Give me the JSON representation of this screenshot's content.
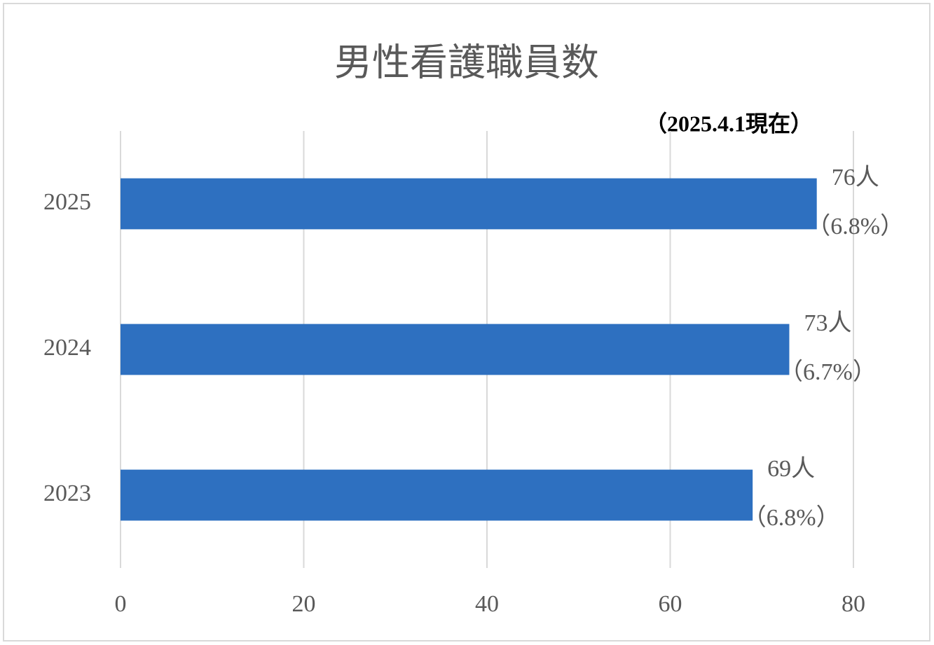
{
  "chart_data": {
    "type": "hbar",
    "title": "男性看護職員数",
    "subtitle": "（2025.4.1現在）",
    "categories": [
      "2025",
      "2024",
      "2023"
    ],
    "values": [
      76,
      73,
      69
    ],
    "value_labels": [
      "76人",
      "73人",
      "69人"
    ],
    "share_labels": [
      "（6.8%）",
      "（6.7%）",
      "（6.8%）"
    ],
    "color": "#2e70c0",
    "xlim": [
      0,
      80
    ],
    "xticks": [
      0,
      20,
      40,
      60,
      80
    ],
    "grid": true
  }
}
